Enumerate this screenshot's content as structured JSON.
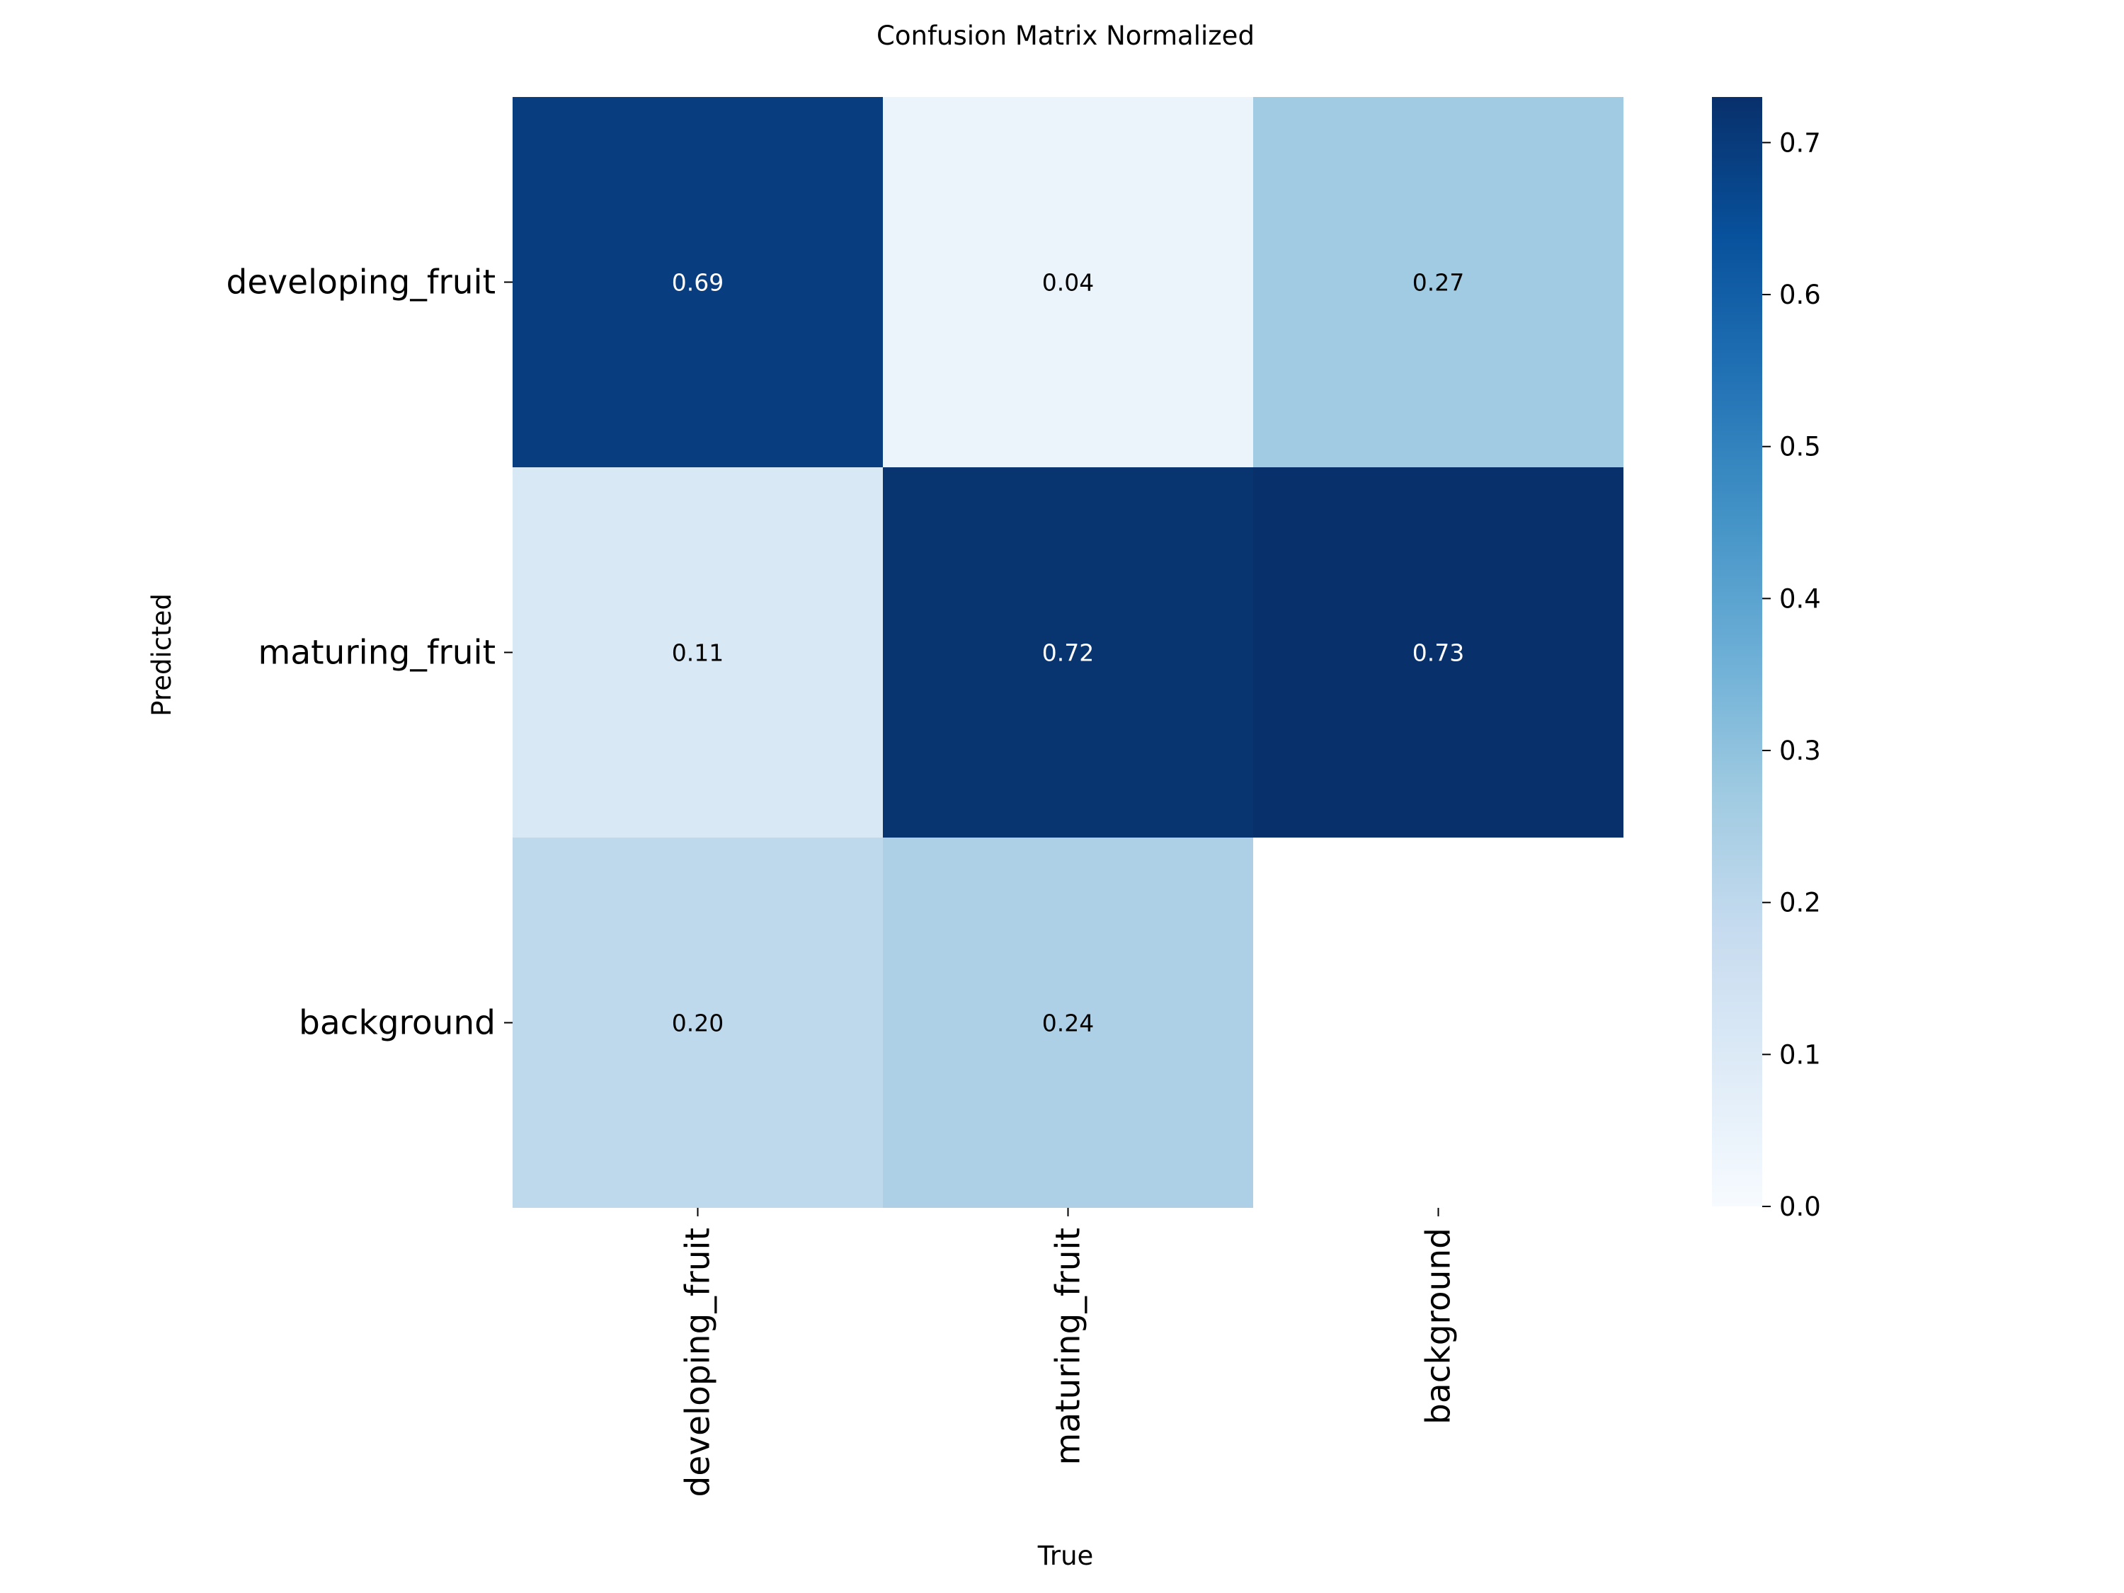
{
  "chart_data": {
    "type": "heatmap",
    "title": "Confusion Matrix Normalized",
    "xlabel": "True",
    "ylabel": "Predicted",
    "x_categories": [
      "developing_fruit",
      "maturing_fruit",
      "background"
    ],
    "y_categories": [
      "developing_fruit",
      "maturing_fruit",
      "background"
    ],
    "values": [
      [
        0.69,
        0.04,
        0.27
      ],
      [
        0.11,
        0.72,
        0.73
      ],
      [
        0.2,
        0.24,
        null
      ]
    ],
    "cell_labels": [
      [
        "0.69",
        "0.04",
        "0.27"
      ],
      [
        "0.11",
        "0.72",
        "0.73"
      ],
      [
        "0.20",
        "0.24",
        ""
      ]
    ],
    "colormap": "Blues",
    "colorbar": {
      "range": [
        0,
        0.73
      ],
      "ticks": [
        0.0,
        0.1,
        0.2,
        0.3,
        0.4,
        0.5,
        0.6,
        0.7
      ],
      "tick_labels": [
        "0.0",
        "0.1",
        "0.2",
        "0.3",
        "0.4",
        "0.5",
        "0.6",
        "0.7"
      ]
    },
    "grid": false
  }
}
